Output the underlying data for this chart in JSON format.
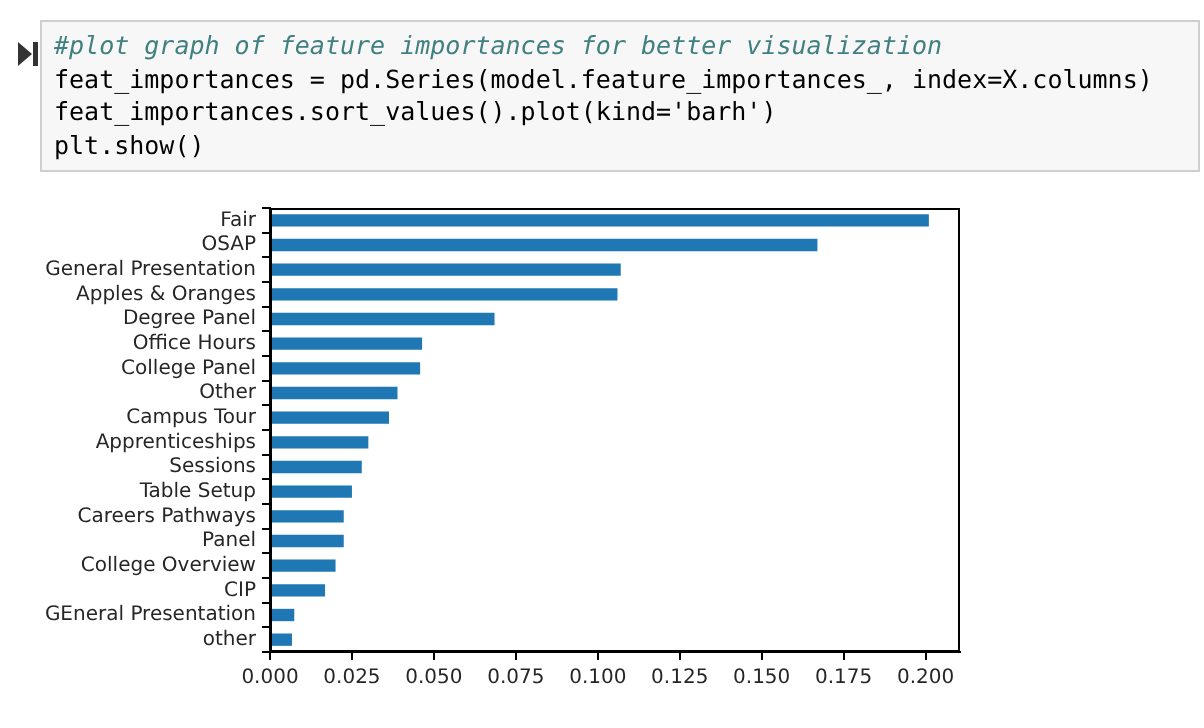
{
  "chart_data": {
    "type": "bar",
    "orientation": "horizontal",
    "categories": [
      "Fair",
      "OSAP",
      "General Presentation",
      "Apples & Oranges",
      "Degree Panel",
      "Office Hours",
      "College Panel",
      "Other",
      "Campus Tour",
      "Apprenticeships",
      "Sessions",
      "Table Setup",
      "Careers Pathways",
      "Panel",
      "College Overview",
      "CIP",
      "GEneral Presentation",
      "other"
    ],
    "values": [
      0.201,
      0.167,
      0.107,
      0.106,
      0.0685,
      0.0464,
      0.0458,
      0.0389,
      0.0363,
      0.03,
      0.028,
      0.025,
      0.0225,
      0.0225,
      0.02,
      0.0168,
      0.0074,
      0.0067
    ],
    "color": "#1f77b4",
    "xlim": [
      0,
      0.2105
    ],
    "xticks": [
      {
        "value": 0,
        "label": "0.000"
      },
      {
        "value": 0.025,
        "label": "0.025"
      },
      {
        "value": 0.05,
        "label": "0.050"
      },
      {
        "value": 0.075,
        "label": "0.075"
      },
      {
        "value": 0.1,
        "label": "0.100"
      },
      {
        "value": 0.125,
        "label": "0.125"
      },
      {
        "value": 0.15,
        "label": "0.150"
      },
      {
        "value": 0.175,
        "label": "0.175"
      },
      {
        "value": 0.2,
        "label": "0.200"
      }
    ],
    "grid": false,
    "legend": false,
    "annotations": [
      "#plot graph of feature importances for better visualization",
      "feat_importances = pd.Series(model.feature_importances_, index=X.columns)",
      "feat_importances.sort_values().plot(kind='barh')",
      "plt.show()"
    ]
  }
}
